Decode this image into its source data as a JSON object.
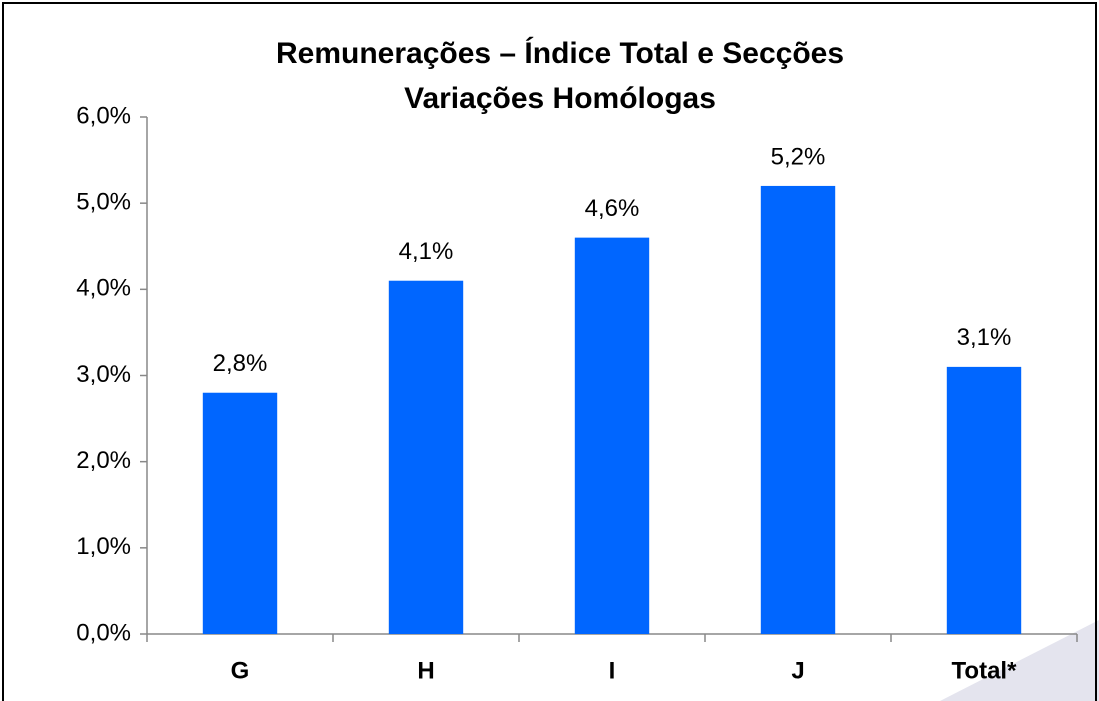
{
  "chart_data": {
    "type": "bar",
    "title": "Remunerações – Índice Total e Secções",
    "subtitle": "Variações Homólogas",
    "categories": [
      "G",
      "H",
      "I",
      "J",
      "Total*"
    ],
    "values": [
      2.8,
      4.1,
      4.6,
      5.2,
      3.1
    ],
    "value_labels": [
      "2,8%",
      "4,1%",
      "4,6%",
      "5,2%",
      "3,1%"
    ],
    "color": "#0066ff",
    "ylim": [
      0,
      6
    ],
    "yticks": [
      {
        "value": 0,
        "label": "0,0%"
      },
      {
        "value": 1,
        "label": "1,0%"
      },
      {
        "value": 2,
        "label": "2,0%"
      },
      {
        "value": 3,
        "label": "3,0%"
      },
      {
        "value": 4,
        "label": "4,0%"
      },
      {
        "value": 5,
        "label": "5,0%"
      },
      {
        "value": 6,
        "label": "6,0%"
      }
    ],
    "grid": false
  }
}
